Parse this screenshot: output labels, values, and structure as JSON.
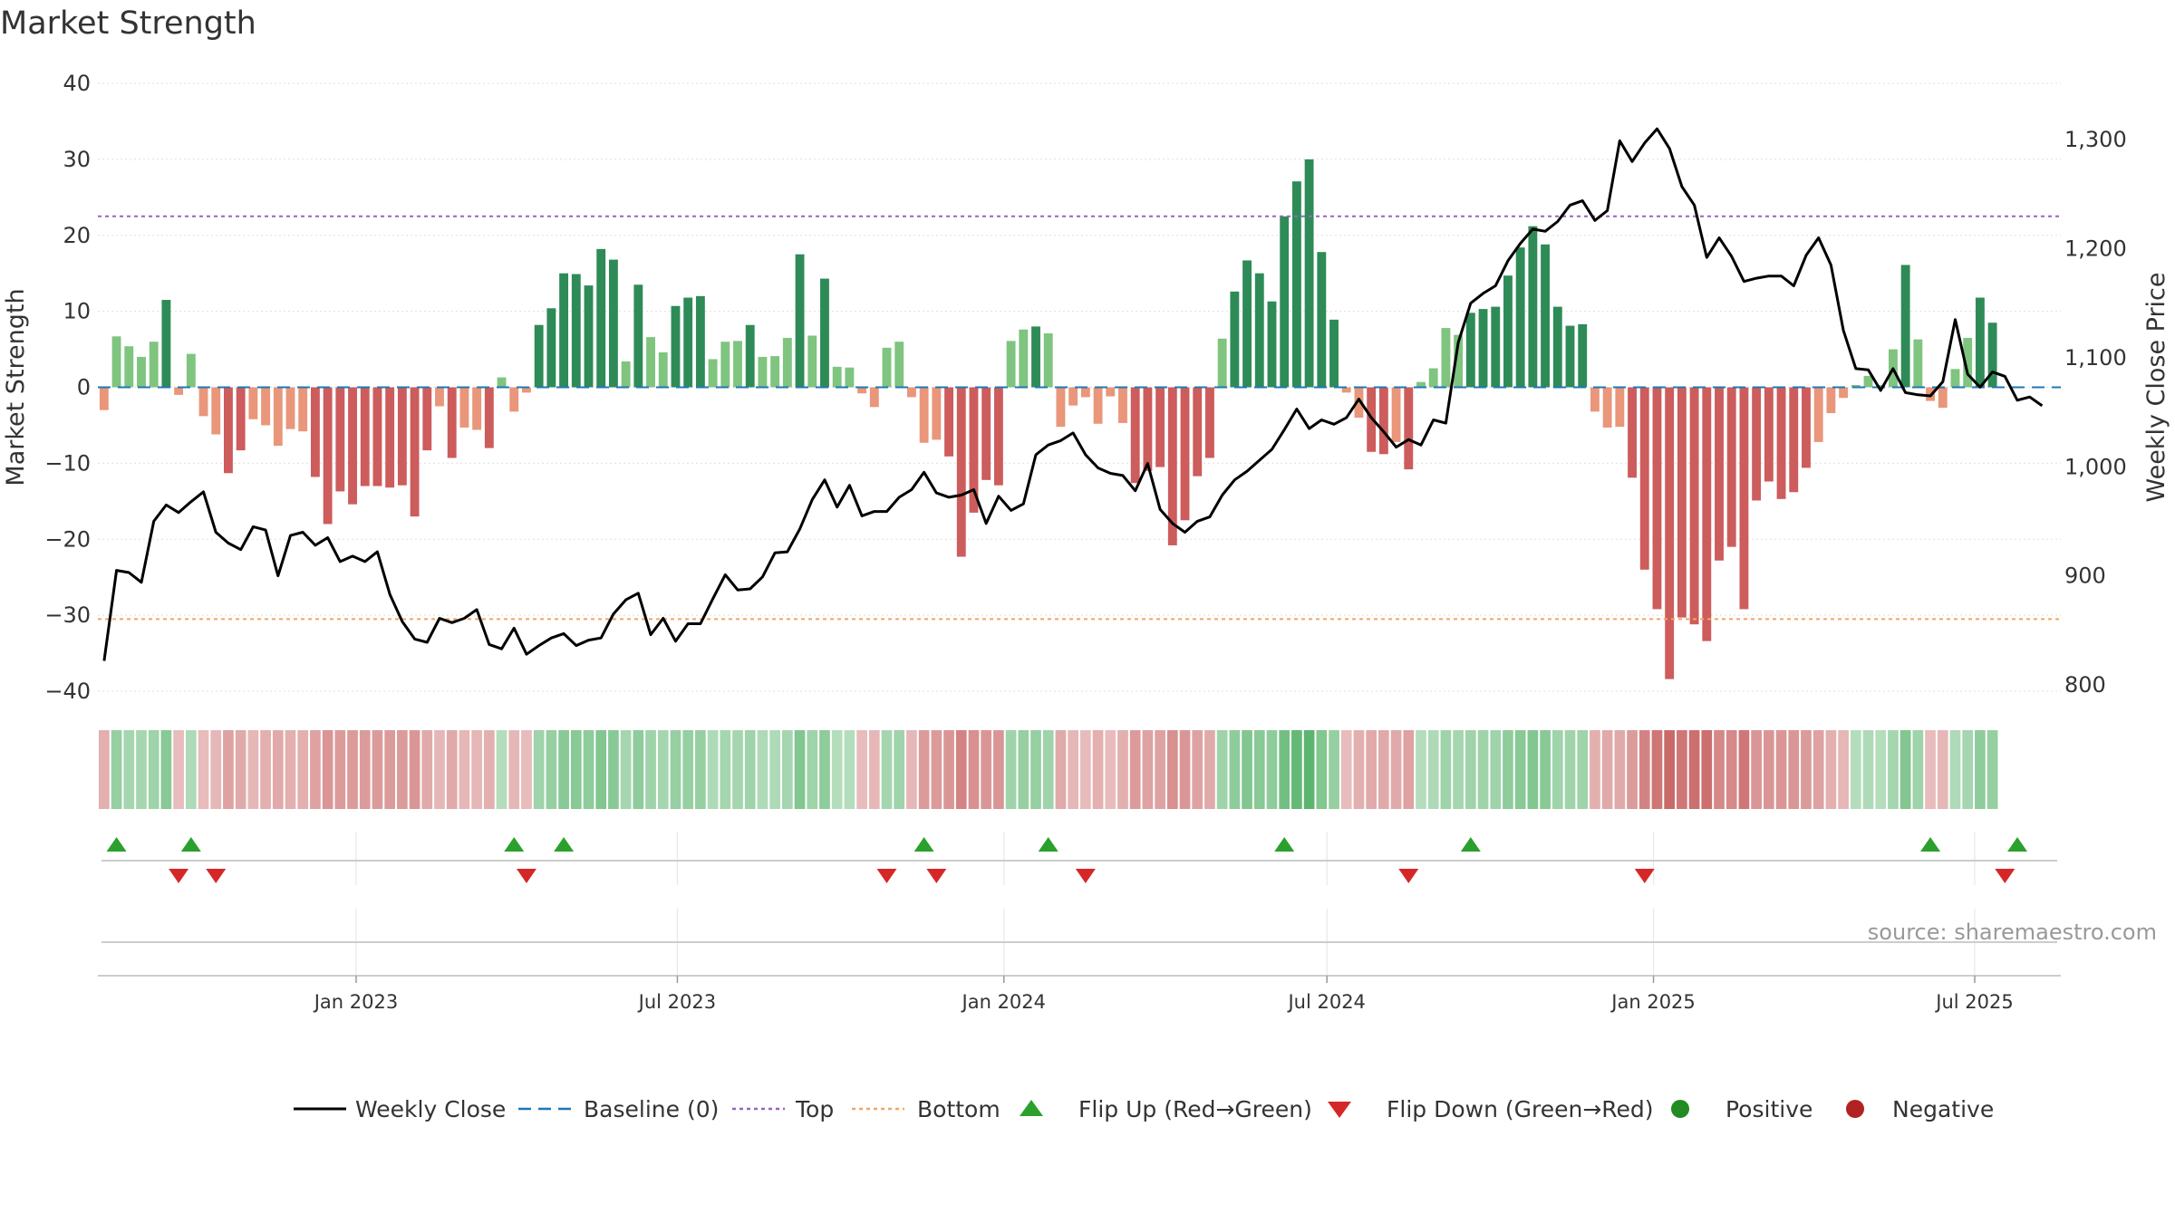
{
  "chart_data": {
    "type": "bar",
    "title": "Market Strength",
    "ylabel_left": "Market Strength",
    "ylabel_right": "Weekly Close Price",
    "ylim_left": [
      -40,
      40
    ],
    "ylim_right": [
      780,
      1370
    ],
    "yticks_left": [
      40,
      30,
      20,
      10,
      0,
      -10,
      -20,
      -30,
      -40
    ],
    "yticks_left_labels": [
      "40",
      "30",
      "20",
      "10",
      "0",
      "−10",
      "−20",
      "−30",
      "−40"
    ],
    "yticks_right": [
      1300,
      1200,
      1100,
      1000,
      900,
      800
    ],
    "yticks_right_labels": [
      "1,300",
      "1,200",
      "1,100",
      "1,000",
      "900",
      "800"
    ],
    "x_start": "2022-08-12",
    "week_count": 158,
    "x_ticks": [
      {
        "date": "2023-01-01",
        "label": "Jan 2023"
      },
      {
        "date": "2023-07-01",
        "label": "Jul 2023"
      },
      {
        "date": "2024-01-01",
        "label": "Jan 2024"
      },
      {
        "date": "2024-07-01",
        "label": "Jul 2024"
      },
      {
        "date": "2025-01-01",
        "label": "Jan 2025"
      },
      {
        "date": "2025-07-01",
        "label": "Jul 2025"
      }
    ],
    "top_level": 22.5,
    "bottom_level": -30.5,
    "strength": [
      -3,
      6.7,
      5.4,
      4,
      6,
      11.5,
      -1,
      4.4,
      -3.8,
      -6.2,
      -11.3,
      -8.3,
      -4.2,
      -5,
      -7.7,
      -5.5,
      -5.8,
      -11.8,
      -18,
      -13.7,
      -15.4,
      -13,
      -13,
      -13.2,
      -12.9,
      -17,
      -8.3,
      -2.5,
      -9.3,
      -5.3,
      -5.6,
      -8,
      1.3,
      -3.2,
      -0.7,
      8.2,
      10.4,
      15,
      14.9,
      13.4,
      18.2,
      16.8,
      3.4,
      13.5,
      6.6,
      4.6,
      10.7,
      11.8,
      12,
      3.7,
      6,
      6.1,
      8.2,
      4,
      4.1,
      6.5,
      17.5,
      6.8,
      14.3,
      2.7,
      2.6,
      -0.8,
      -2.6,
      5.2,
      6,
      -1.3,
      -7.3,
      -6.9,
      -9.1,
      -22.3,
      -16.5,
      -12.2,
      -12.9,
      6.1,
      7.6,
      8,
      7.1,
      -5.2,
      -2.4,
      -1.3,
      -4.8,
      -1.2,
      -4.7,
      -12.6,
      -11,
      -10.5,
      -20.8,
      -17.5,
      -11.7,
      -9.3,
      6.4,
      12.6,
      16.7,
      15,
      11.3,
      22.5,
      27.1,
      30,
      17.8,
      8.9,
      -0.7,
      -4,
      -8.5,
      -8.8,
      -7.2,
      -10.8,
      0.7,
      2.5,
      7.8,
      6.9,
      9.8,
      10.3,
      10.6,
      14.7,
      18.4,
      21.2,
      18.8,
      10.6,
      8.1,
      8.3,
      -3.2,
      -5.3,
      -5.2,
      -11.9,
      -24,
      -29.2,
      -38.4,
      -30.3,
      -31.2,
      -33.4,
      -22.8,
      -21,
      -29.2,
      -14.9,
      -12.4,
      -14.7,
      -13.8,
      -10.6,
      -7.2,
      -3.4,
      -1.4,
      0.3,
      1.5,
      0.3,
      5,
      16.1,
      6.3,
      -1.8,
      -2.7,
      2.4,
      6.5,
      11.8,
      8.5
    ],
    "weekly_close": [
      822,
      905,
      903,
      894,
      950,
      965,
      958,
      968,
      977,
      940,
      930,
      924,
      945,
      942,
      900,
      937,
      940,
      928,
      935,
      913,
      918,
      913,
      922,
      883,
      858,
      842,
      839,
      861,
      857,
      861,
      869,
      837,
      833,
      852,
      828,
      836,
      843,
      847,
      836,
      841,
      843,
      865,
      878,
      884,
      846,
      861,
      840,
      856,
      856,
      879,
      901,
      887,
      888,
      899,
      921,
      922,
      943,
      970,
      988,
      963,
      983,
      955,
      959,
      959,
      972,
      979,
      995,
      976,
      972,
      974,
      979,
      948,
      973,
      960,
      966,
      1011,
      1020,
      1024,
      1031,
      1011,
      999,
      994,
      992,
      978,
      1003,
      961,
      948,
      940,
      950,
      954,
      974,
      988,
      996,
      1006,
      1016,
      1034,
      1053,
      1035,
      1043,
      1039,
      1045,
      1062,
      1045,
      1032,
      1018,
      1025,
      1020,
      1043,
      1040,
      1114,
      1150,
      1159,
      1166,
      1189,
      1205,
      1218,
      1216,
      1225,
      1240,
      1244,
      1226,
      1235,
      1299,
      1280,
      1297,
      1310,
      1292,
      1257,
      1240,
      1192,
      1210,
      1193,
      1170,
      1173,
      1175,
      1175,
      1166,
      1194,
      1210,
      1185,
      1125,
      1090,
      1089,
      1070,
      1090,
      1068,
      1066,
      1065,
      1078,
      1135,
      1085,
      1073,
      1087,
      1083,
      1061,
      1064,
      1056
    ],
    "heat": [
      0.4,
      0.5,
      0.4,
      0.4,
      0.45,
      0.6,
      0.3,
      0.35,
      0.3,
      0.35,
      0.5,
      0.45,
      0.35,
      0.4,
      0.45,
      0.4,
      0.4,
      0.5,
      0.6,
      0.55,
      0.55,
      0.55,
      0.55,
      0.55,
      0.55,
      0.6,
      0.45,
      0.35,
      0.45,
      0.35,
      0.35,
      0.4,
      0.3,
      0.35,
      0.3,
      0.45,
      0.5,
      0.6,
      0.6,
      0.55,
      0.65,
      0.6,
      0.4,
      0.55,
      0.45,
      0.4,
      0.5,
      0.5,
      0.5,
      0.35,
      0.4,
      0.4,
      0.45,
      0.35,
      0.35,
      0.4,
      0.65,
      0.45,
      0.55,
      0.3,
      0.3,
      0.3,
      0.35,
      0.4,
      0.45,
      0.35,
      0.55,
      0.55,
      0.6,
      0.75,
      0.65,
      0.6,
      0.6,
      0.45,
      0.5,
      0.5,
      0.45,
      0.45,
      0.35,
      0.3,
      0.4,
      0.3,
      0.4,
      0.55,
      0.5,
      0.5,
      0.65,
      0.6,
      0.5,
      0.45,
      0.45,
      0.55,
      0.65,
      0.6,
      0.55,
      0.75,
      0.85,
      0.9,
      0.65,
      0.5,
      0.3,
      0.4,
      0.45,
      0.45,
      0.45,
      0.5,
      0.3,
      0.35,
      0.45,
      0.4,
      0.45,
      0.45,
      0.45,
      0.55,
      0.6,
      0.65,
      0.6,
      0.45,
      0.45,
      0.45,
      0.4,
      0.45,
      0.45,
      0.55,
      0.75,
      0.85,
      0.95,
      0.85,
      0.9,
      0.9,
      0.7,
      0.7,
      0.85,
      0.6,
      0.6,
      0.6,
      0.6,
      0.55,
      0.5,
      0.4,
      0.35,
      0.3,
      0.35,
      0.3,
      0.4,
      0.65,
      0.45,
      0.3,
      0.35,
      0.35,
      0.4,
      0.55,
      0.5
    ],
    "flip_up_weeks": [
      1,
      7,
      33,
      37,
      66,
      76,
      95,
      110,
      147,
      154
    ],
    "flip_down_weeks": [
      6,
      9,
      34,
      63,
      67,
      79,
      105,
      124,
      153
    ],
    "colors": {
      "strong_positive": "#2e8b57",
      "weak_positive": "#7fc47f",
      "strong_negative": "#cd5c5c",
      "weak_negative": "#e9967a",
      "line": "#000000",
      "baseline": "#1f77b4",
      "top": "#9467bd",
      "bottom": "#f4a460",
      "flip_up": "#2ca02c",
      "flip_down": "#d62728",
      "positive_dot": "#228b22",
      "negative_dot": "#b22222"
    },
    "legend_position": "bottom",
    "legend": [
      {
        "label": "Weekly Close",
        "marker": "solid-line"
      },
      {
        "label": "Baseline (0)",
        "marker": "dashed-line"
      },
      {
        "label": "Top",
        "marker": "dotted-line-purple"
      },
      {
        "label": "Bottom",
        "marker": "dotted-line-orange"
      },
      {
        "label": "Flip Up (Red→Green)",
        "marker": "triangle-up"
      },
      {
        "label": "Flip Down (Green→Red)",
        "marker": "triangle-down"
      },
      {
        "label": "Positive",
        "marker": "dot-green"
      },
      {
        "label": "Negative",
        "marker": "dot-red"
      }
    ],
    "source": "source: sharemaestro.com"
  }
}
